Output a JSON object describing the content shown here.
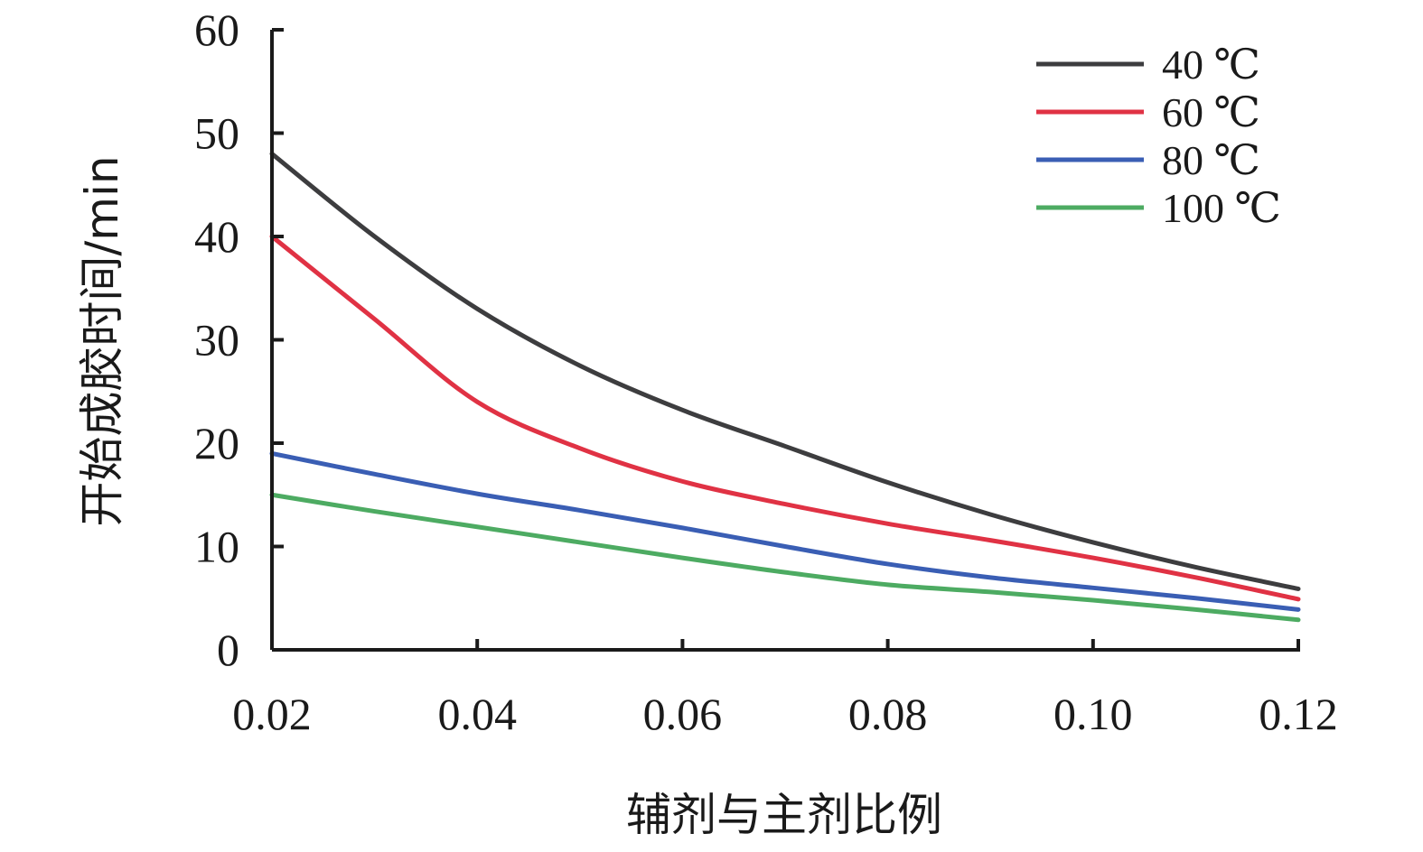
{
  "chart_data": {
    "type": "line",
    "xlabel": "辅剂与主剂比例",
    "ylabel": "开始成胶时间/min",
    "xlim": [
      0.02,
      0.12
    ],
    "ylim": [
      0,
      60
    ],
    "x_ticks": [
      "0.02",
      "0.04",
      "0.06",
      "0.08",
      "0.10",
      "0.12"
    ],
    "y_ticks": [
      "0",
      "10",
      "20",
      "30",
      "40",
      "50",
      "60"
    ],
    "legend_position": "top-right",
    "grid": false,
    "x": [
      0.02,
      0.03,
      0.04,
      0.05,
      0.06,
      0.07,
      0.08,
      0.09,
      0.1,
      0.11,
      0.12
    ],
    "series": [
      {
        "name": "40 ℃",
        "color": "#3d3d3f",
        "values": [
          48,
          40,
          33,
          27.5,
          23.2,
          19.7,
          16.2,
          13.1,
          10.4,
          8.0,
          5.9
        ]
      },
      {
        "name": "60 ℃",
        "color": "#e03244",
        "values": [
          40,
          32,
          24,
          19.5,
          16.3,
          14.1,
          12.2,
          10.6,
          8.9,
          7.0,
          4.9
        ]
      },
      {
        "name": "80 ℃",
        "color": "#3a5eb4",
        "values": [
          19,
          17,
          15.1,
          13.5,
          11.8,
          10.0,
          8.3,
          7.0,
          6.0,
          5.0,
          3.9
        ]
      },
      {
        "name": "100 ℃",
        "color": "#4dab62",
        "values": [
          15,
          13.4,
          11.9,
          10.4,
          8.9,
          7.5,
          6.3,
          5.6,
          4.8,
          3.9,
          2.9
        ]
      }
    ]
  }
}
